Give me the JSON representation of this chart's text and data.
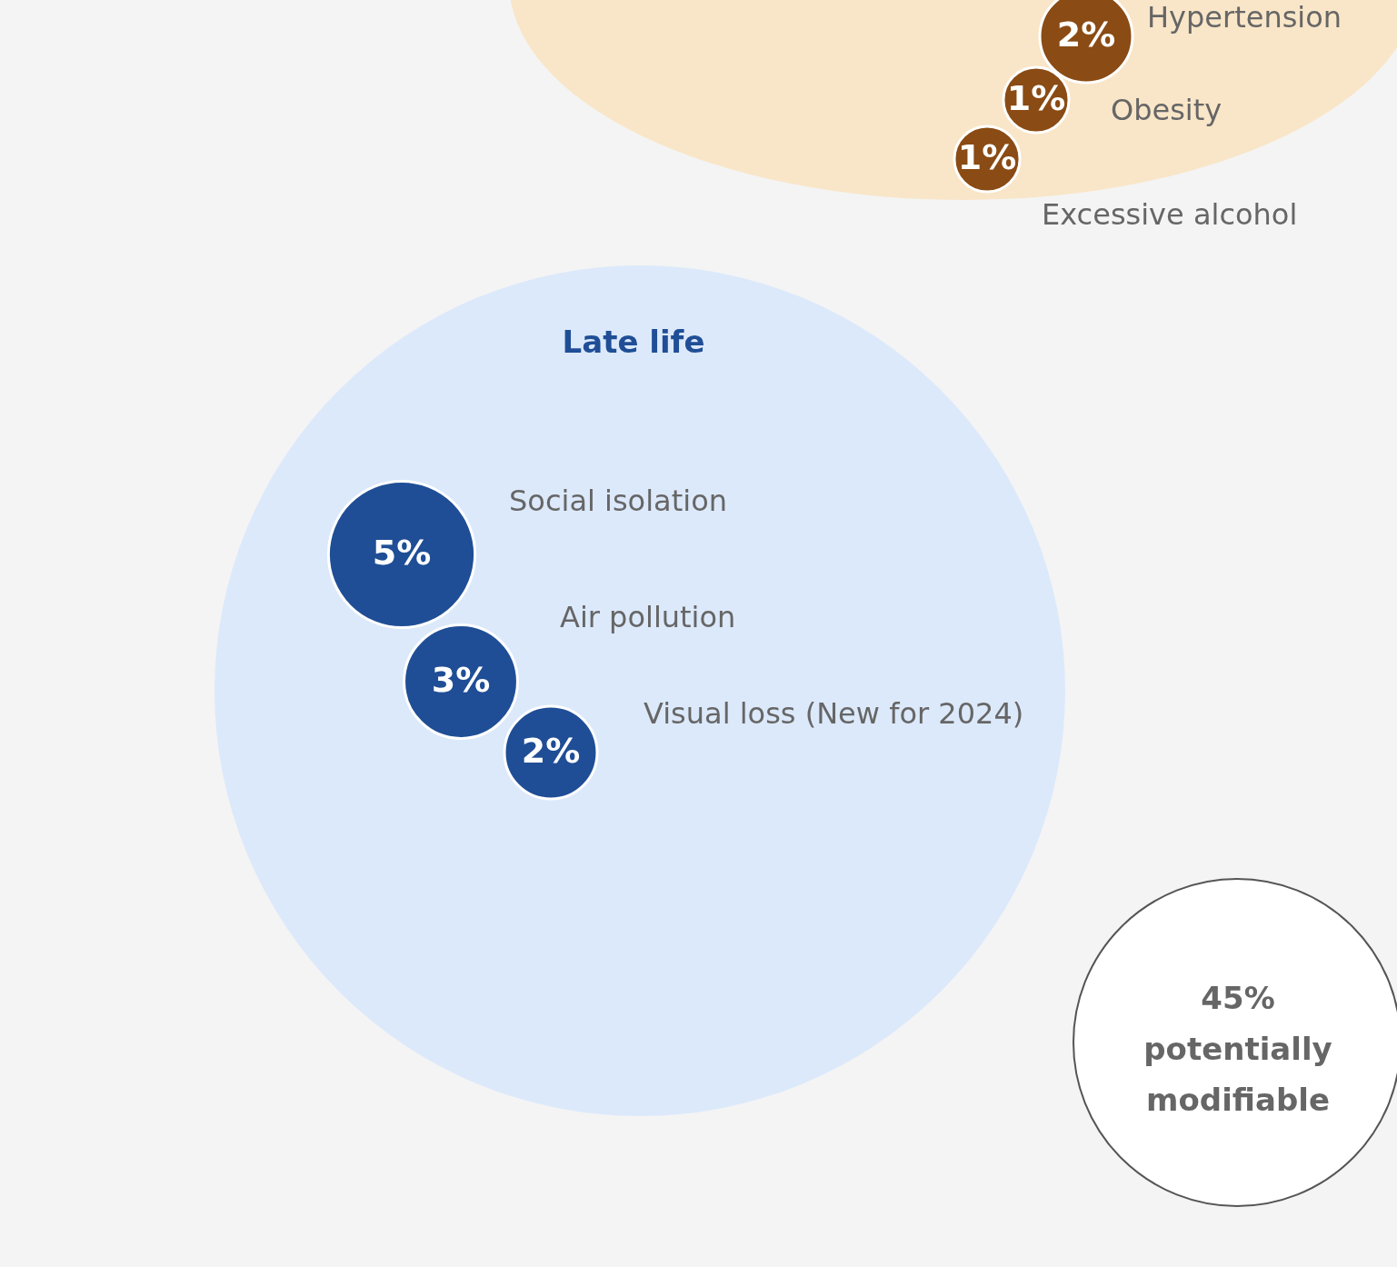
{
  "chart_data": {
    "type": "other",
    "title": "Late life",
    "categories": [
      "Hypertension",
      "Obesity",
      "Excessive alcohol",
      "Social isolation",
      "Air pollution",
      "Visual loss (New for 2024)"
    ],
    "values": [
      2,
      1,
      1,
      5,
      3,
      2
    ],
    "value_labels": [
      "2%",
      "1%",
      "1%",
      "5%",
      "3%",
      "2%"
    ],
    "colors": [
      "#8a4b14",
      "#8a4b14",
      "#8a4b14",
      "#1f4e96",
      "#1f4e96",
      "#1f4e96"
    ],
    "annotations": [
      "45% potentially modifiable"
    ]
  }
}
